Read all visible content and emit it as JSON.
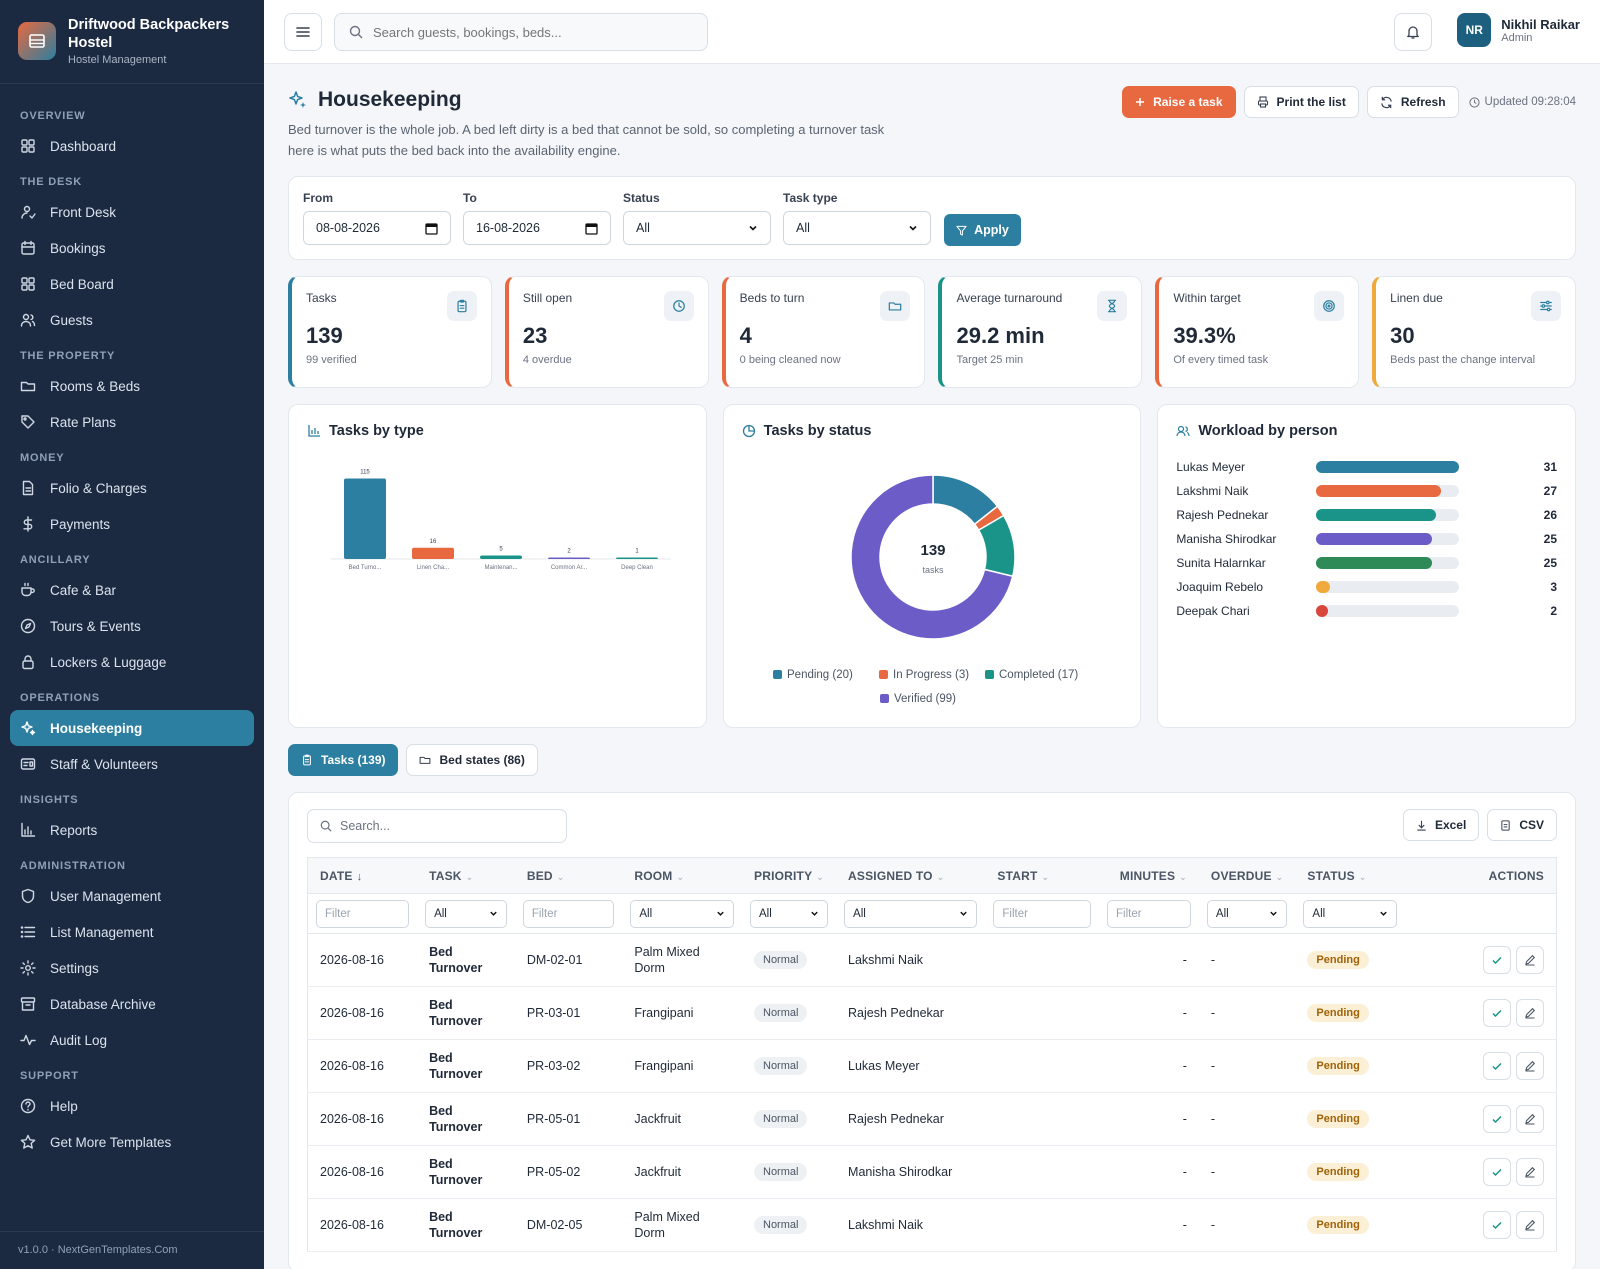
{
  "brand": {
    "name": "Driftwood Backpackers Hostel",
    "subtitle": "Hostel Management"
  },
  "nav": [
    {
      "section": "Overview",
      "items": [
        {
          "label": "Dashboard",
          "icon": "dashboard-icon"
        }
      ]
    },
    {
      "section": "The Desk",
      "items": [
        {
          "label": "Front Desk",
          "icon": "front-desk-icon"
        },
        {
          "label": "Bookings",
          "icon": "calendar-icon"
        },
        {
          "label": "Bed Board",
          "icon": "grid-icon"
        },
        {
          "label": "Guests",
          "icon": "users-icon"
        }
      ]
    },
    {
      "section": "The Property",
      "items": [
        {
          "label": "Rooms & Beds",
          "icon": "folder-icon"
        },
        {
          "label": "Rate Plans",
          "icon": "tag-icon"
        }
      ]
    },
    {
      "section": "Money",
      "items": [
        {
          "label": "Folio & Charges",
          "icon": "document-icon"
        },
        {
          "label": "Payments",
          "icon": "dollar-icon"
        }
      ]
    },
    {
      "section": "Ancillary",
      "items": [
        {
          "label": "Cafe & Bar",
          "icon": "coffee-icon"
        },
        {
          "label": "Tours & Events",
          "icon": "compass-icon"
        },
        {
          "label": "Lockers & Luggage",
          "icon": "lock-icon"
        }
      ]
    },
    {
      "section": "Operations",
      "items": [
        {
          "label": "Housekeeping",
          "icon": "sparkles-icon",
          "active": true
        },
        {
          "label": "Staff & Volunteers",
          "icon": "id-card-icon"
        }
      ]
    },
    {
      "section": "Insights",
      "items": [
        {
          "label": "Reports",
          "icon": "bar-chart-icon"
        }
      ]
    },
    {
      "section": "Administration",
      "items": [
        {
          "label": "User Management",
          "icon": "shield-icon"
        },
        {
          "label": "List Management",
          "icon": "list-icon"
        },
        {
          "label": "Settings",
          "icon": "gear-icon"
        },
        {
          "label": "Database Archive",
          "icon": "archive-icon"
        },
        {
          "label": "Audit Log",
          "icon": "activity-icon"
        }
      ]
    },
    {
      "section": "Support",
      "items": [
        {
          "label": "Help",
          "icon": "help-icon"
        },
        {
          "label": "Get More Templates",
          "icon": "star-icon"
        }
      ]
    }
  ],
  "footer": {
    "version": "v1.0.0 · NextGenTemplates.Com"
  },
  "topbar": {
    "search_placeholder": "Search guests, bookings, beds...",
    "user": {
      "initials": "NR",
      "name": "Nikhil Raikar",
      "role": "Admin"
    }
  },
  "page": {
    "title": "Housekeeping",
    "description": "Bed turnover is the whole job. A bed left dirty is a bed that cannot be sold, so completing a turnover task here is what puts the bed back into the availability engine.",
    "actions": {
      "raise": "Raise a task",
      "print": "Print the list",
      "refresh": "Refresh"
    },
    "updated": "Updated 09:28:04"
  },
  "filters": {
    "from_label": "From",
    "from_value": "08-08-2026",
    "to_label": "To",
    "to_value": "16-08-2026",
    "status_label": "Status",
    "status_value": "All",
    "type_label": "Task type",
    "type_value": "All",
    "apply": "Apply"
  },
  "kpis": [
    {
      "label": "Tasks",
      "value": "139",
      "sub": "99 verified",
      "color": "#2c7fa0",
      "icon": "clipboard-icon"
    },
    {
      "label": "Still open",
      "value": "23",
      "sub": "4 overdue",
      "color": "#e8693f",
      "icon": "clock-icon"
    },
    {
      "label": "Beds to turn",
      "value": "4",
      "sub": "0 being cleaned now",
      "color": "#e8693f",
      "icon": "folder-icon"
    },
    {
      "label": "Average turnaround",
      "value": "29.2 min",
      "sub": "Target 25 min",
      "color": "#1a9488",
      "icon": "hourglass-icon"
    },
    {
      "label": "Within target",
      "value": "39.3%",
      "sub": "Of every timed task",
      "color": "#e8693f",
      "icon": "target-icon"
    },
    {
      "label": "Linen due",
      "value": "30",
      "sub": "Beds past the change interval",
      "color": "#f0a93b",
      "icon": "sliders-icon"
    }
  ],
  "charts": {
    "type_title": "Tasks by type",
    "status_title": "Tasks by status",
    "status_center_value": "139",
    "status_center_label": "tasks",
    "workload_title": "Workload by person"
  },
  "chart_data": [
    {
      "type": "bar",
      "title": "Tasks by type",
      "categories": [
        "Bed Turno...",
        "Linen Cha...",
        "Maintenan...",
        "Common Ar...",
        "Deep Clean"
      ],
      "values": [
        115,
        16,
        5,
        2,
        1
      ],
      "colors": [
        "#2c7fa0",
        "#e8693f",
        "#1a9488",
        "#6b5cc7",
        "#1a9488"
      ],
      "ylim": [
        0,
        120
      ]
    },
    {
      "type": "pie",
      "title": "Tasks by status",
      "labels": [
        "Pending",
        "In Progress",
        "Completed",
        "Verified"
      ],
      "legend": [
        "Pending (20)",
        "In Progress (3)",
        "Completed (17)",
        "Verified (99)"
      ],
      "values": [
        20,
        3,
        17,
        99
      ],
      "colors": [
        "#2c7fa0",
        "#e8693f",
        "#1a9488",
        "#6b5cc7"
      ]
    },
    {
      "type": "bar",
      "title": "Workload by person",
      "categories": [
        "Lukas Meyer",
        "Lakshmi Naik",
        "Rajesh Pednekar",
        "Manisha Shirodkar",
        "Sunita Halarnkar",
        "Joaquim Rebelo",
        "Deepak Chari"
      ],
      "values": [
        31,
        27,
        26,
        25,
        25,
        3,
        2
      ],
      "colors": [
        "#2c7fa0",
        "#e8693f",
        "#1a9488",
        "#6b5cc7",
        "#2e8b57",
        "#f0a93b",
        "#d9463b"
      ],
      "xlim": [
        0,
        31
      ]
    }
  ],
  "tabs": [
    {
      "label": "Tasks (139)",
      "active": true
    },
    {
      "label": "Bed states (86)"
    }
  ],
  "table": {
    "search_placeholder": "Search...",
    "export": {
      "excel": "Excel",
      "csv": "CSV"
    },
    "columns": [
      "Date",
      "Task",
      "Bed",
      "Room",
      "Priority",
      "Assigned To",
      "Start",
      "Minutes",
      "Overdue",
      "Status",
      "Actions"
    ],
    "filter_placeholder": "Filter",
    "filter_all": "All",
    "rows": [
      {
        "date": "2026-08-16",
        "task": "Bed Turnover",
        "bed": "DM-02-01",
        "room": "Palm Mixed Dorm",
        "priority": "Normal",
        "assigned": "Lakshmi Naik",
        "start": "",
        "minutes": "-",
        "overdue": "-",
        "status": "Pending"
      },
      {
        "date": "2026-08-16",
        "task": "Bed Turnover",
        "bed": "PR-03-01",
        "room": "Frangipani",
        "priority": "Normal",
        "assigned": "Rajesh Pednekar",
        "start": "",
        "minutes": "-",
        "overdue": "-",
        "status": "Pending"
      },
      {
        "date": "2026-08-16",
        "task": "Bed Turnover",
        "bed": "PR-03-02",
        "room": "Frangipani",
        "priority": "Normal",
        "assigned": "Lukas Meyer",
        "start": "",
        "minutes": "-",
        "overdue": "-",
        "status": "Pending"
      },
      {
        "date": "2026-08-16",
        "task": "Bed Turnover",
        "bed": "PR-05-01",
        "room": "Jackfruit",
        "priority": "Normal",
        "assigned": "Rajesh Pednekar",
        "start": "",
        "minutes": "-",
        "overdue": "-",
        "status": "Pending"
      },
      {
        "date": "2026-08-16",
        "task": "Bed Turnover",
        "bed": "PR-05-02",
        "room": "Jackfruit",
        "priority": "Normal",
        "assigned": "Manisha Shirodkar",
        "start": "",
        "minutes": "-",
        "overdue": "-",
        "status": "Pending"
      },
      {
        "date": "2026-08-16",
        "task": "Bed Turnover",
        "bed": "DM-02-05",
        "room": "Palm Mixed Dorm",
        "priority": "Normal",
        "assigned": "Lakshmi Naik",
        "start": "",
        "minutes": "-",
        "overdue": "-",
        "status": "Pending"
      }
    ]
  }
}
